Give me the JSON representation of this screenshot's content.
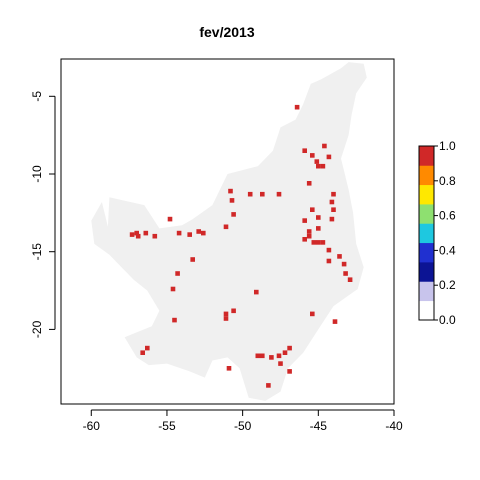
{
  "chart_data": {
    "type": "heatmap",
    "title": "fev/2013",
    "xlabel": "",
    "ylabel": "",
    "xlim": [
      -62,
      -40
    ],
    "ylim": [
      -24.8,
      -2.6
    ],
    "x_ticks": [
      -60,
      -55,
      -50,
      -45,
      -40
    ],
    "y_ticks": [
      -5,
      -10,
      -15,
      -20
    ],
    "x_tick_labels": [
      "-60",
      "-55",
      "-50",
      "-45",
      "-40"
    ],
    "y_tick_labels": [
      "-5",
      "-10",
      "-15",
      "-20"
    ],
    "legend": {
      "position": "right",
      "range": [
        0,
        1
      ],
      "ticks": [
        0.0,
        0.2,
        0.4,
        0.6,
        0.8,
        1.0
      ],
      "tick_labels": [
        "0.0",
        "0.2",
        "0.4",
        "0.6",
        "0.8",
        "1.0"
      ],
      "colors": [
        "#ffffff",
        "#c8c4ec",
        "#0c1494",
        "#2030d0",
        "#1ec8e0",
        "#8ee070",
        "#ffe800",
        "#ff8a00",
        "#d02828"
      ]
    },
    "background_color": "#f0f0f0",
    "region_outline": [
      [
        -58.9,
        -13.4
      ],
      [
        -58.8,
        -11.5
      ],
      [
        -56.5,
        -12.0
      ],
      [
        -55.5,
        -13.5
      ],
      [
        -54.0,
        -13.3
      ],
      [
        -53.3,
        -12.9
      ],
      [
        -52.0,
        -12.0
      ],
      [
        -51.0,
        -10.0
      ],
      [
        -49.0,
        -9.5
      ],
      [
        -48.0,
        -8.5
      ],
      [
        -47.5,
        -7.0
      ],
      [
        -46.5,
        -6.5
      ],
      [
        -46.0,
        -5.5
      ],
      [
        -45.5,
        -4.2
      ],
      [
        -44.8,
        -3.9
      ],
      [
        -43.5,
        -3.2
      ],
      [
        -43.0,
        -2.8
      ],
      [
        -42.0,
        -2.9
      ],
      [
        -41.8,
        -3.8
      ],
      [
        -42.5,
        -4.8
      ],
      [
        -42.8,
        -6.2
      ],
      [
        -43.0,
        -7.5
      ],
      [
        -43.5,
        -9.0
      ],
      [
        -43.0,
        -11.0
      ],
      [
        -42.7,
        -12.5
      ],
      [
        -42.5,
        -14.5
      ],
      [
        -42.0,
        -16.0
      ],
      [
        -42.4,
        -17.4
      ],
      [
        -44.0,
        -18.5
      ],
      [
        -45.0,
        -20.0
      ],
      [
        -46.0,
        -21.5
      ],
      [
        -47.0,
        -22.5
      ],
      [
        -47.5,
        -24.0
      ],
      [
        -48.5,
        -24.6
      ],
      [
        -49.6,
        -24.4
      ],
      [
        -50.2,
        -22.5
      ],
      [
        -51.0,
        -21.8
      ],
      [
        -52.0,
        -22.0
      ],
      [
        -52.5,
        -23.1
      ],
      [
        -53.5,
        -22.7
      ],
      [
        -55.0,
        -22.2
      ],
      [
        -56.2,
        -22.3
      ],
      [
        -57.0,
        -21.8
      ],
      [
        -57.8,
        -20.5
      ],
      [
        -56.0,
        -19.8
      ],
      [
        -55.5,
        -18.8
      ],
      [
        -56.3,
        -17.5
      ],
      [
        -57.2,
        -16.8
      ],
      [
        -58.0,
        -16.0
      ],
      [
        -58.8,
        -15.2
      ],
      [
        -59.8,
        -14.5
      ],
      [
        -60.0,
        -13.0
      ],
      [
        -59.3,
        -11.8
      ]
    ],
    "series": [
      {
        "values": 1.0,
        "points": [
          [
            -46.4,
            -5.7
          ],
          [
            -45.9,
            -8.5
          ],
          [
            -45.4,
            -8.8
          ],
          [
            -45.1,
            -9.2
          ],
          [
            -45.0,
            -9.5
          ],
          [
            -44.7,
            -9.5
          ],
          [
            -44.3,
            -8.9
          ],
          [
            -44.6,
            -8.2
          ],
          [
            -45.6,
            -10.6
          ],
          [
            -44.0,
            -11.3
          ],
          [
            -44.1,
            -11.8
          ],
          [
            -44.0,
            -12.3
          ],
          [
            -44.1,
            -12.9
          ],
          [
            -50.8,
            -11.1
          ],
          [
            -50.7,
            -11.7
          ],
          [
            -49.5,
            -11.3
          ],
          [
            -48.7,
            -11.3
          ],
          [
            -47.6,
            -11.3
          ],
          [
            -45.4,
            -12.3
          ],
          [
            -45.0,
            -12.8
          ],
          [
            -45.0,
            -13.5
          ],
          [
            -45.6,
            -13.7
          ],
          [
            -45.9,
            -13.0
          ],
          [
            -45.6,
            -14.0
          ],
          [
            -45.3,
            -14.4
          ],
          [
            -45.0,
            -14.4
          ],
          [
            -44.7,
            -14.4
          ],
          [
            -45.9,
            -14.2
          ],
          [
            -44.3,
            -14.9
          ],
          [
            -43.6,
            -15.3
          ],
          [
            -43.3,
            -15.8
          ],
          [
            -43.2,
            -16.4
          ],
          [
            -42.9,
            -16.8
          ],
          [
            -44.3,
            -15.6
          ],
          [
            -50.6,
            -12.6
          ],
          [
            -51.1,
            -13.4
          ],
          [
            -52.6,
            -13.8
          ],
          [
            -52.9,
            -13.7
          ],
          [
            -53.5,
            -13.9
          ],
          [
            -54.2,
            -13.8
          ],
          [
            -54.8,
            -12.9
          ],
          [
            -56.4,
            -13.8
          ],
          [
            -56.9,
            -14.0
          ],
          [
            -57.3,
            -13.9
          ],
          [
            -57.0,
            -13.8
          ],
          [
            -55.8,
            -14.0
          ],
          [
            -53.3,
            -15.5
          ],
          [
            -54.3,
            -16.4
          ],
          [
            -54.6,
            -17.4
          ],
          [
            -49.1,
            -17.6
          ],
          [
            -50.6,
            -18.8
          ],
          [
            -51.1,
            -19.0
          ],
          [
            -51.1,
            -19.3
          ],
          [
            -45.4,
            -19.0
          ],
          [
            -43.9,
            -19.5
          ],
          [
            -54.5,
            -19.4
          ],
          [
            -56.3,
            -21.2
          ],
          [
            -56.6,
            -21.5
          ],
          [
            -50.9,
            -22.5
          ],
          [
            -49.0,
            -21.7
          ],
          [
            -48.7,
            -21.7
          ],
          [
            -48.1,
            -21.8
          ],
          [
            -47.6,
            -21.7
          ],
          [
            -47.2,
            -21.5
          ],
          [
            -46.9,
            -21.2
          ],
          [
            -47.5,
            -22.2
          ],
          [
            -46.9,
            -22.7
          ],
          [
            -48.3,
            -23.6
          ]
        ]
      }
    ]
  }
}
